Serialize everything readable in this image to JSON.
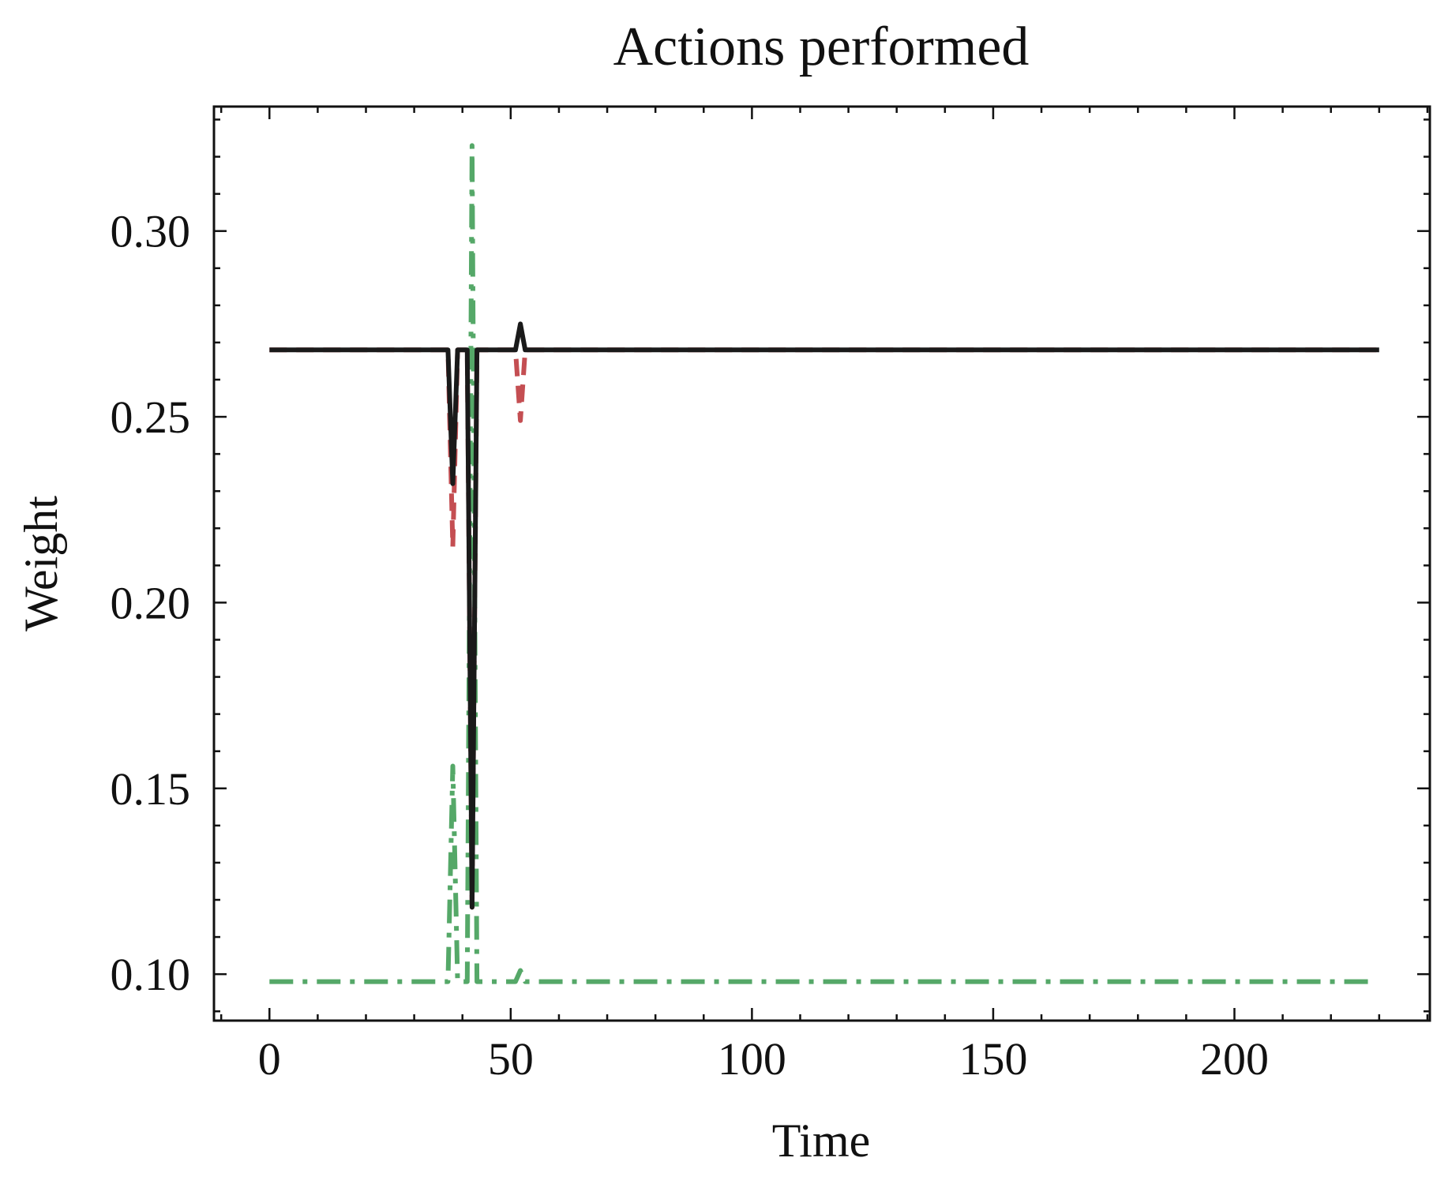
{
  "chart_data": {
    "type": "line",
    "title": "Actions performed",
    "xlabel": "Time",
    "ylabel": "Weight",
    "xlim": [
      -11.5,
      240.5
    ],
    "ylim": [
      0.0875,
      0.3335
    ],
    "xticks": [
      0,
      50,
      100,
      150,
      200
    ],
    "yticks": [
      0.1,
      0.15,
      0.2,
      0.25,
      0.3
    ],
    "xtick_labels": [
      "0",
      "50",
      "100",
      "150",
      "200"
    ],
    "ytick_labels": [
      "0.10",
      "0.15",
      "0.20",
      "0.25",
      "0.30"
    ],
    "x_minor_step": 10,
    "y_minor_step": 0.01,
    "grid": false,
    "legend": "none",
    "series": [
      {
        "color": "#c44e52",
        "style": "dashed",
        "points": [
          [
            0,
            0.268
          ],
          [
            37,
            0.268
          ],
          [
            38,
            0.215
          ],
          [
            39,
            0.268
          ],
          [
            41,
            0.268
          ],
          [
            42,
            0.118
          ],
          [
            43,
            0.268
          ],
          [
            51,
            0.268
          ],
          [
            52,
            0.249
          ],
          [
            53,
            0.268
          ],
          [
            230,
            0.268
          ]
        ]
      },
      {
        "color": "#55a868",
        "style": "dashdot",
        "points": [
          [
            0,
            0.098
          ],
          [
            37,
            0.098
          ],
          [
            38,
            0.156
          ],
          [
            39,
            0.098
          ],
          [
            41,
            0.098
          ],
          [
            42,
            0.323
          ],
          [
            43,
            0.098
          ],
          [
            51,
            0.098
          ],
          [
            52,
            0.101
          ],
          [
            53,
            0.098
          ],
          [
            228,
            0.098
          ]
        ]
      },
      {
        "color": "#1a1a1a",
        "style": "solid",
        "points": [
          [
            0,
            0.268
          ],
          [
            37,
            0.268
          ],
          [
            38,
            0.232
          ],
          [
            39,
            0.268
          ],
          [
            41,
            0.268
          ],
          [
            42,
            0.118
          ],
          [
            43,
            0.268
          ],
          [
            51,
            0.268
          ],
          [
            52,
            0.275
          ],
          [
            53,
            0.268
          ],
          [
            230,
            0.268
          ]
        ]
      }
    ]
  }
}
